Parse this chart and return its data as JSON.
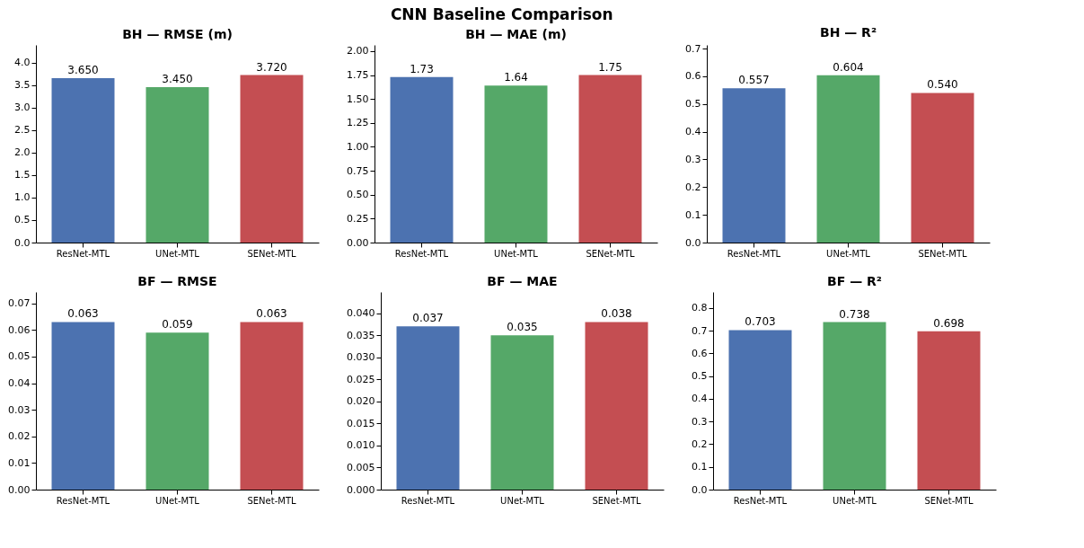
{
  "chart_data": [
    {
      "type": "bar",
      "annotations": [
        "CNN Baseline Comparison"
      ],
      "title": "BH — RMSE (m)",
      "categories": [
        "ResNet-MTL",
        "UNet-MTL",
        "SENet-MTL"
      ],
      "values": [
        3.65,
        3.45,
        3.72
      ],
      "colors": [
        "#4c72b0",
        "#55a868",
        "#c44e52"
      ],
      "value_labels": [
        "3.650",
        "3.450",
        "3.720"
      ],
      "ylim": [
        0,
        4.39
      ],
      "yticks": [
        {
          "value": 0,
          "label": "0.0"
        },
        0.5,
        {
          "value": 1,
          "label": "1.0"
        },
        1.5,
        {
          "value": 2,
          "label": "2.0"
        },
        2.5,
        {
          "value": 3,
          "label": "3.0"
        },
        3.5,
        {
          "value": 4,
          "label": "4.0"
        }
      ],
      "grid": false
    },
    {
      "type": "bar",
      "title": "BH — MAE (m)",
      "categories": [
        "ResNet-MTL",
        "UNet-MTL",
        "SENet-MTL"
      ],
      "values": [
        1.73,
        1.64,
        1.75
      ],
      "colors": [
        "#4c72b0",
        "#55a868",
        "#c44e52"
      ],
      "value_labels": [
        "1.73",
        "1.64",
        "1.75"
      ],
      "ylim": [
        0,
        2.065
      ],
      "yticks": [
        {
          "value": 0,
          "label": "0.00"
        },
        0.25,
        {
          "value": 0.5,
          "label": "0.50"
        },
        0.75,
        {
          "value": 1,
          "label": "1.00"
        },
        1.25,
        {
          "value": 1.5,
          "label": "1.50"
        },
        1.75,
        {
          "value": 2,
          "label": "2.00"
        }
      ],
      "grid": false
    },
    {
      "type": "bar",
      "title": "BH — R²",
      "categories": [
        "ResNet-MTL",
        "UNet-MTL",
        "SENet-MTL"
      ],
      "values": [
        0.557,
        0.604,
        0.54
      ],
      "colors": [
        "#4c72b0",
        "#55a868",
        "#c44e52"
      ],
      "value_labels": [
        "0.557",
        "0.604",
        "0.540"
      ],
      "ylim": [
        0,
        0.713
      ],
      "yticks": [
        {
          "value": 0,
          "label": "0.0"
        },
        0.1,
        0.2,
        0.3,
        0.4,
        0.5,
        0.6,
        0.7
      ],
      "grid": false
    },
    {
      "type": "bar",
      "title": "BF — RMSE",
      "categories": [
        "ResNet-MTL",
        "UNet-MTL",
        "SENet-MTL"
      ],
      "values": [
        0.063,
        0.059,
        0.063
      ],
      "colors": [
        "#4c72b0",
        "#55a868",
        "#c44e52"
      ],
      "value_labels": [
        "0.063",
        "0.059",
        "0.063"
      ],
      "ylim": [
        0,
        0.0743
      ],
      "yticks": [
        {
          "value": 0,
          "label": "0.00"
        },
        0.01,
        0.02,
        0.03,
        0.04,
        0.05,
        0.06,
        0.07
      ],
      "grid": false
    },
    {
      "type": "bar",
      "title": "BF — MAE",
      "categories": [
        "ResNet-MTL",
        "UNet-MTL",
        "SENet-MTL"
      ],
      "values": [
        0.037,
        0.035,
        0.038
      ],
      "colors": [
        "#4c72b0",
        "#55a868",
        "#c44e52"
      ],
      "value_labels": [
        "0.037",
        "0.035",
        "0.038"
      ],
      "ylim": [
        0,
        0.0448
      ],
      "yticks": [
        {
          "value": 0,
          "label": "0.000"
        },
        0.005,
        {
          "value": 0.01,
          "label": "0.010"
        },
        0.015,
        {
          "value": 0.02,
          "label": "0.020"
        },
        0.025,
        {
          "value": 0.03,
          "label": "0.030"
        },
        0.035,
        {
          "value": 0.04,
          "label": "0.040"
        }
      ],
      "grid": false
    },
    {
      "type": "bar",
      "title": "BF — R²",
      "categories": [
        "ResNet-MTL",
        "UNet-MTL",
        "SENet-MTL"
      ],
      "values": [
        0.703,
        0.738,
        0.698
      ],
      "colors": [
        "#4c72b0",
        "#55a868",
        "#c44e52"
      ],
      "value_labels": [
        "0.703",
        "0.738",
        "0.698"
      ],
      "ylim": [
        0,
        0.871
      ],
      "yticks": [
        {
          "value": 0,
          "label": "0.0"
        },
        0.1,
        0.2,
        0.3,
        0.4,
        0.5,
        0.6,
        0.7,
        0.8
      ],
      "grid": false
    }
  ]
}
